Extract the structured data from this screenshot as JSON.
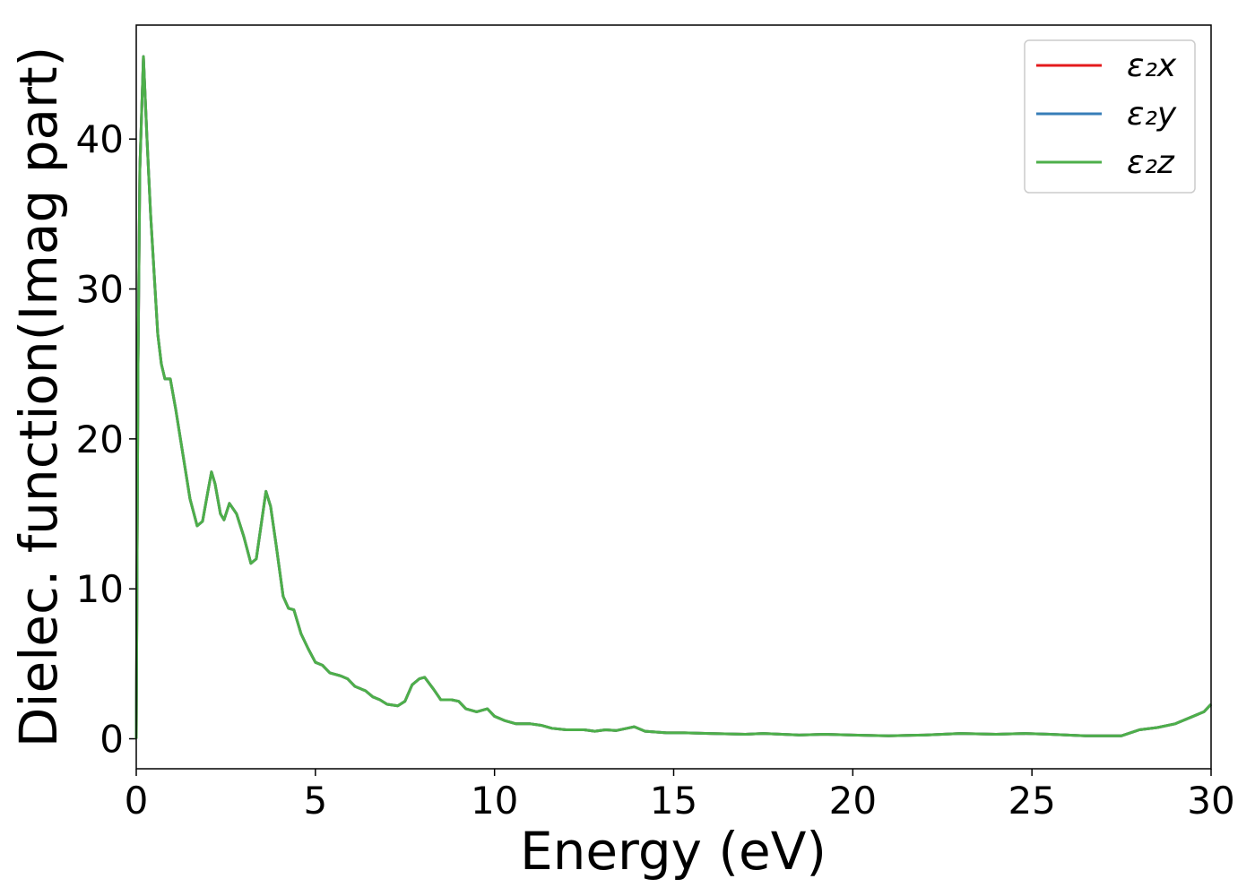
{
  "chart_data": {
    "type": "line",
    "xlabel": "Energy (eV)",
    "ylabel": "Dielec. function(Imag part)",
    "x": [
      0,
      0.05,
      0.1,
      0.2,
      0.3,
      0.4,
      0.5,
      0.6,
      0.7,
      0.8,
      0.95,
      1.1,
      1.3,
      1.5,
      1.7,
      1.85,
      2.0,
      2.1,
      2.2,
      2.35,
      2.45,
      2.6,
      2.8,
      3.0,
      3.2,
      3.35,
      3.5,
      3.62,
      3.75,
      3.9,
      4.1,
      4.25,
      4.4,
      4.6,
      4.8,
      5.0,
      5.2,
      5.4,
      5.7,
      5.9,
      6.1,
      6.4,
      6.6,
      6.8,
      7.0,
      7.3,
      7.5,
      7.7,
      7.9,
      8.05,
      8.3,
      8.5,
      8.8,
      9.0,
      9.2,
      9.5,
      9.8,
      10.0,
      10.3,
      10.6,
      11.0,
      11.3,
      11.6,
      12.0,
      12.5,
      12.8,
      13.1,
      13.4,
      13.7,
      13.9,
      14.2,
      14.8,
      15.3,
      16,
      17,
      17.5,
      18.5,
      19.2,
      20,
      21,
      22,
      23,
      24,
      24.8,
      25.5,
      26.5,
      27.5,
      28,
      28.5,
      29,
      29.5,
      29.8,
      30
    ],
    "series": [
      {
        "name": "ε₂x",
        "color": "#e41a1c",
        "values": [
          0,
          25,
          38,
          45.5,
          40,
          35,
          31,
          27,
          25,
          24,
          24,
          22,
          19,
          16,
          14.2,
          14.5,
          16.5,
          17.8,
          17,
          15,
          14.6,
          15.7,
          15,
          13.5,
          11.7,
          12,
          14.5,
          16.5,
          15.5,
          13,
          9.5,
          8.7,
          8.6,
          7,
          6,
          5.1,
          4.9,
          4.4,
          4.2,
          4,
          3.5,
          3.2,
          2.8,
          2.6,
          2.3,
          2.2,
          2.5,
          3.6,
          4.0,
          4.1,
          3.3,
          2.6,
          2.6,
          2.5,
          2.0,
          1.8,
          2.0,
          1.5,
          1.2,
          1.0,
          1.0,
          0.9,
          0.7,
          0.6,
          0.6,
          0.5,
          0.6,
          0.55,
          0.7,
          0.8,
          0.5,
          0.4,
          0.4,
          0.35,
          0.3,
          0.35,
          0.25,
          0.3,
          0.25,
          0.2,
          0.25,
          0.35,
          0.3,
          0.35,
          0.3,
          0.2,
          0.2,
          0.6,
          0.75,
          1.0,
          1.5,
          1.8,
          2.3
        ]
      },
      {
        "name": "ε₂y",
        "color": "#377eb8",
        "values": [
          0,
          25,
          38,
          45.5,
          40,
          35,
          31,
          27,
          25,
          24,
          24,
          22,
          19,
          16,
          14.2,
          14.5,
          16.5,
          17.8,
          17,
          15,
          14.6,
          15.7,
          15,
          13.5,
          11.7,
          12,
          14.5,
          16.5,
          15.5,
          13,
          9.5,
          8.7,
          8.6,
          7,
          6,
          5.1,
          4.9,
          4.4,
          4.2,
          4,
          3.5,
          3.2,
          2.8,
          2.6,
          2.3,
          2.2,
          2.5,
          3.6,
          4.0,
          4.1,
          3.3,
          2.6,
          2.6,
          2.5,
          2.0,
          1.8,
          2.0,
          1.5,
          1.2,
          1.0,
          1.0,
          0.9,
          0.7,
          0.6,
          0.6,
          0.5,
          0.6,
          0.55,
          0.7,
          0.8,
          0.5,
          0.4,
          0.4,
          0.35,
          0.3,
          0.35,
          0.25,
          0.3,
          0.25,
          0.2,
          0.25,
          0.35,
          0.3,
          0.35,
          0.3,
          0.2,
          0.2,
          0.6,
          0.75,
          1.0,
          1.5,
          1.8,
          2.3
        ]
      },
      {
        "name": "ε₂z",
        "color": "#4daf4a",
        "values": [
          0,
          25,
          38,
          45.5,
          40,
          35,
          31,
          27,
          25,
          24,
          24,
          22,
          19,
          16,
          14.2,
          14.5,
          16.5,
          17.8,
          17,
          15,
          14.6,
          15.7,
          15,
          13.5,
          11.7,
          12,
          14.5,
          16.5,
          15.5,
          13,
          9.5,
          8.7,
          8.6,
          7,
          6,
          5.1,
          4.9,
          4.4,
          4.2,
          4,
          3.5,
          3.2,
          2.8,
          2.6,
          2.3,
          2.2,
          2.5,
          3.6,
          4.0,
          4.1,
          3.3,
          2.6,
          2.6,
          2.5,
          2.0,
          1.8,
          2.0,
          1.5,
          1.2,
          1.0,
          1.0,
          0.9,
          0.7,
          0.6,
          0.6,
          0.5,
          0.6,
          0.55,
          0.7,
          0.8,
          0.5,
          0.4,
          0.4,
          0.35,
          0.3,
          0.35,
          0.25,
          0.3,
          0.25,
          0.2,
          0.25,
          0.35,
          0.3,
          0.35,
          0.3,
          0.2,
          0.2,
          0.6,
          0.75,
          1.0,
          1.5,
          1.8,
          2.3
        ]
      }
    ],
    "xlim": [
      0,
      30
    ],
    "xticks": [
      0,
      5,
      10,
      15,
      20,
      25,
      30
    ],
    "ylim": [
      -2.0,
      47.6
    ],
    "yticks": [
      0,
      10,
      20,
      30,
      40
    ],
    "legend": "upper right"
  }
}
